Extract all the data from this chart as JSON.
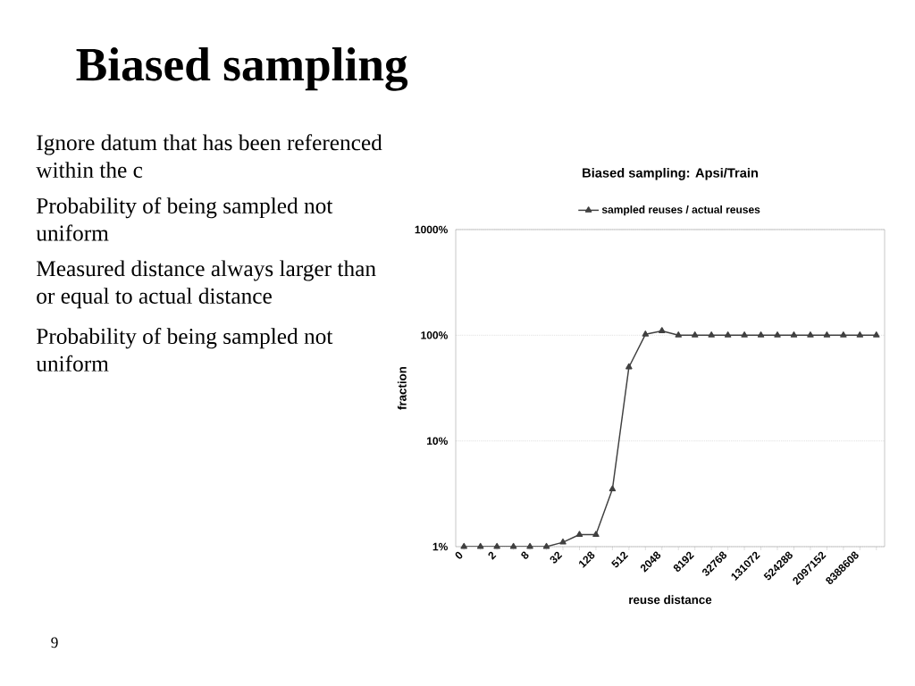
{
  "chart_data": {
    "type": "line",
    "title": "Biased sampling",
    "subtitle": "Biased sampling: Apsi/Train",
    "xlabel": "reuse distance",
    "ylabel": "fraction",
    "categories": [
      "0",
      null,
      "2",
      null,
      "8",
      null,
      "32",
      null,
      "128",
      null,
      "512",
      null,
      "2048",
      null,
      "8192",
      null,
      "32768",
      null,
      "131072",
      null,
      "524288",
      null,
      "2097152",
      null,
      "8388608",
      null
    ],
    "series": [
      {
        "name": "sampled reuses / actual reuses",
        "color": "#404040",
        "values": [
          1,
          1,
          1,
          1,
          1,
          1,
          1.1,
          1.3,
          1.3,
          3.5,
          50,
          102,
          110,
          100,
          100,
          100,
          100,
          100,
          100,
          100,
          100,
          100,
          100,
          100,
          100,
          100
        ]
      }
    ],
    "ylim": [
      1,
      1000
    ],
    "yticks": [
      {
        "value": 1,
        "label": "1%"
      },
      {
        "value": 10,
        "label": "10%"
      },
      {
        "value": 100,
        "label": "100%"
      },
      {
        "value": 1000,
        "label": "1000%"
      }
    ],
    "log": true,
    "grid": "y",
    "legend": "top",
    "marker": "triangle",
    "annotations": [
      "Ignore datum that has been referenced within the c",
      "Probability of being sampled not uniform",
      "Measured distance always larger than or equal to actual distance",
      "Probability of being sampled not uniform",
      "9"
    ]
  }
}
